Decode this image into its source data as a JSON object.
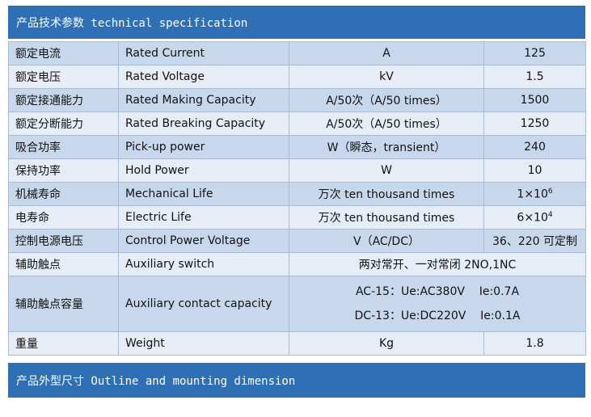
{
  "header": {
    "title": "产品技术参数 technical specification"
  },
  "table": {
    "rows": [
      [
        "额定电流",
        "Rated Current",
        "A",
        "125"
      ],
      [
        "额定电压",
        "Rated Voltage",
        "kV",
        "1.5"
      ],
      [
        "额定接通能力",
        "Rated Making Capacity",
        "A/50次（A/50 times）",
        "1500"
      ],
      [
        "额定分断能力",
        "Rated Breaking Capacity",
        "A/50次（A/50 times）",
        "1250"
      ],
      [
        "吸合功率",
        "Pick-up power",
        "W（瞬态，transient）",
        "240"
      ],
      [
        "保持功率",
        "Hold Power",
        "W",
        "10"
      ],
      [
        "机械寿命",
        "Mechanical Life",
        "万次 ten thousand times",
        {
          "base": "1×10",
          "exp": "6"
        }
      ],
      [
        "电寿命",
        "Electric Life",
        "万次 ten thousand times",
        {
          "base": "6×10",
          "exp": "4"
        }
      ],
      [
        "控制电源电压",
        "Control Power Voltage",
        "V（AC/DC）",
        "36、220 可定制"
      ],
      [
        "辅助触点",
        "Auxiliary switch",
        "两对常开、一对常闭 2NO,1NC"
      ],
      [
        "辅助触点容量",
        "Auxiliary contact capacity",
        [
          "AC-15：Ue:AC380V    Ie:0.7A",
          "DC-13：Ue:DC220V    Ie:0.1A"
        ]
      ],
      [
        "重量",
        "Weight",
        "Kg",
        "1.8"
      ]
    ]
  },
  "footer": {
    "title": "产品外型尺寸 Outline and mounting dimension"
  }
}
